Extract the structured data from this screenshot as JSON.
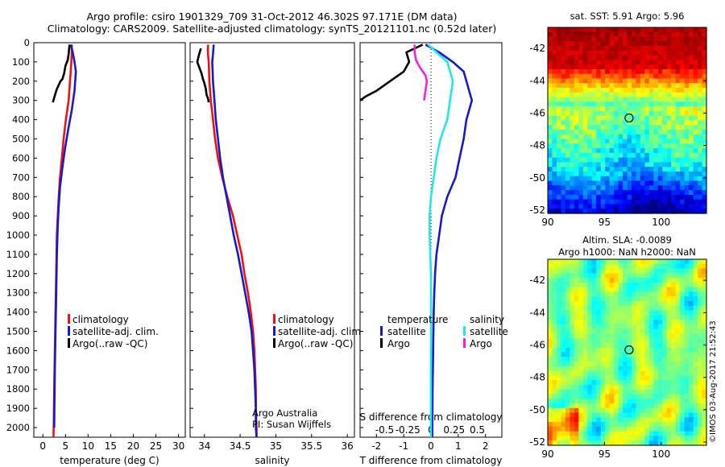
{
  "title": {
    "line1": "Argo profile: csiro 1901329_709 31-Oct-2012 46.302S 97.171E (DM data)",
    "line2": "Climatology: CARS2009. Satellite-adjusted climatology: synTS_20121101.nc (0.52d later)"
  },
  "timestamp": "©IMOS 03-Aug-2017 21:52:43",
  "colors": {
    "red": "#ee1111",
    "blue": "#1818cc",
    "black": "#000000",
    "cyan": "#22e6e6",
    "magenta": "#ee22dd"
  },
  "chart_data": [
    {
      "type": "line",
      "id": "temperature",
      "xlabel": "temperature (deg C)",
      "xlim": [
        -2,
        31.5
      ],
      "ylim": [
        0,
        2050
      ],
      "y_reversed": true,
      "xticks": [
        "0",
        "5",
        "10",
        "15",
        "20",
        "25",
        "30"
      ],
      "yticks": [
        "0",
        "100",
        "200",
        "300",
        "400",
        "500",
        "600",
        "700",
        "800",
        "900",
        "1000",
        "1100",
        "1200",
        "1300",
        "1400",
        "1500",
        "1600",
        "1700",
        "1800",
        "1900",
        "2000"
      ],
      "legend": [
        "climatology",
        "satellite-adj. clim.",
        "Argo(..raw -QC)"
      ],
      "series": [
        {
          "name": "climatology",
          "color": "red",
          "points": [
            [
              6.4,
              10
            ],
            [
              6.4,
              50
            ],
            [
              6.3,
              100
            ],
            [
              6.0,
              200
            ],
            [
              5.7,
              300
            ],
            [
              5.1,
              400
            ],
            [
              4.6,
              500
            ],
            [
              4.2,
              600
            ],
            [
              3.8,
              700
            ],
            [
              3.5,
              800
            ],
            [
              3.3,
              900
            ],
            [
              3.1,
              1000
            ],
            [
              2.95,
              1200
            ],
            [
              2.8,
              1400
            ],
            [
              2.65,
              1600
            ],
            [
              2.5,
              1800
            ],
            [
              2.4,
              2000
            ],
            [
              2.35,
              2050
            ]
          ]
        },
        {
          "name": "satellite-adj. clim.",
          "color": "blue",
          "points": [
            [
              6.2,
              10
            ],
            [
              6.6,
              50
            ],
            [
              7.0,
              100
            ],
            [
              7.3,
              150
            ],
            [
              7.0,
              250
            ],
            [
              6.4,
              350
            ],
            [
              5.6,
              450
            ],
            [
              4.9,
              550
            ],
            [
              4.3,
              650
            ],
            [
              3.8,
              750
            ],
            [
              3.5,
              850
            ],
            [
              3.3,
              950
            ],
            [
              3.1,
              1100
            ],
            [
              2.95,
              1300
            ],
            [
              2.8,
              1500
            ],
            [
              2.65,
              1700
            ],
            [
              2.55,
              1900
            ],
            [
              2.5,
              2000
            ]
          ]
        },
        {
          "name": "Argo(..raw -QC)",
          "color": "black",
          "points": [
            [
              5.9,
              10
            ],
            [
              5.7,
              60
            ],
            [
              5.5,
              90
            ],
            [
              5.0,
              120
            ],
            [
              4.7,
              160
            ],
            [
              4.3,
              190
            ],
            [
              3.9,
              200
            ],
            [
              3.5,
              220
            ],
            [
              3.1,
              240
            ],
            [
              2.7,
              270
            ],
            [
              2.4,
              295
            ],
            [
              2.2,
              310
            ]
          ]
        }
      ]
    },
    {
      "type": "line",
      "id": "salinity",
      "xlabel": "salinity",
      "xlim": [
        33.8,
        36.1
      ],
      "ylim": [
        0,
        2050
      ],
      "y_reversed": true,
      "xticks": [
        "34",
        "34.5",
        "35",
        "35.5",
        "36"
      ],
      "legend": [
        "climatology",
        "satellite-adj. clim.",
        "Argo(..raw -QC)"
      ],
      "annotation": [
        "Argo Australia",
        "PI: Susan Wijffels"
      ],
      "series": [
        {
          "name": "climatology",
          "color": "red",
          "points": [
            [
              34.05,
              10
            ],
            [
              34.05,
              60
            ],
            [
              34.06,
              100
            ],
            [
              34.07,
              200
            ],
            [
              34.09,
              300
            ],
            [
              34.12,
              400
            ],
            [
              34.15,
              500
            ],
            [
              34.19,
              600
            ],
            [
              34.25,
              700
            ],
            [
              34.32,
              800
            ],
            [
              34.4,
              900
            ],
            [
              34.46,
              1000
            ],
            [
              34.52,
              1100
            ],
            [
              34.56,
              1200
            ],
            [
              34.61,
              1300
            ],
            [
              34.65,
              1400
            ],
            [
              34.68,
              1500
            ],
            [
              34.7,
              1600
            ],
            [
              34.71,
              1700
            ],
            [
              34.72,
              1800
            ],
            [
              34.72,
              1900
            ],
            [
              34.73,
              2000
            ],
            [
              34.73,
              2050
            ]
          ]
        },
        {
          "name": "satellite-adj. clim.",
          "color": "blue",
          "points": [
            [
              34.13,
              10
            ],
            [
              34.12,
              60
            ],
            [
              34.11,
              100
            ],
            [
              34.12,
              200
            ],
            [
              34.14,
              300
            ],
            [
              34.16,
              400
            ],
            [
              34.19,
              500
            ],
            [
              34.22,
              600
            ],
            [
              34.26,
              700
            ],
            [
              34.31,
              800
            ],
            [
              34.36,
              900
            ],
            [
              34.41,
              1000
            ],
            [
              34.47,
              1100
            ],
            [
              34.52,
              1200
            ],
            [
              34.57,
              1300
            ],
            [
              34.62,
              1400
            ],
            [
              34.66,
              1500
            ],
            [
              34.68,
              1600
            ],
            [
              34.7,
              1700
            ],
            [
              34.71,
              1800
            ],
            [
              34.72,
              1900
            ],
            [
              34.72,
              2000
            ],
            [
              34.73,
              2050
            ]
          ]
        },
        {
          "name": "Argo(..raw -QC)",
          "color": "black",
          "points": [
            [
              33.95,
              30
            ],
            [
              33.92,
              70
            ],
            [
              33.9,
              100
            ],
            [
              33.93,
              130
            ],
            [
              33.96,
              160
            ],
            [
              33.98,
              190
            ],
            [
              34.0,
              210
            ],
            [
              34.02,
              240
            ],
            [
              34.03,
              270
            ],
            [
              34.05,
              290
            ],
            [
              34.06,
              310
            ]
          ]
        }
      ]
    },
    {
      "type": "line",
      "id": "difference",
      "xlabel": "T difference from climatology",
      "xlabel_top": "S difference from climatology",
      "xlim": [
        -2.6,
        2.6
      ],
      "ylim": [
        0,
        2050
      ],
      "y_reversed": true,
      "xticks": [
        "-2",
        "-1",
        "0",
        "1",
        "2"
      ],
      "xticks_top": [
        "-0.5",
        "-0.25",
        "0",
        "0.25",
        "0.5"
      ],
      "legend_headers": [
        "temperature",
        "salinity"
      ],
      "legend": {
        "temperature": [
          "satellite",
          "Argo"
        ],
        "salinity": [
          "satellite",
          "Argo"
        ]
      },
      "series": [
        {
          "name": "temperature satellite",
          "color": "blue",
          "points": [
            [
              -0.2,
              10
            ],
            [
              0.3,
              50
            ],
            [
              0.8,
              100
            ],
            [
              1.2,
              150
            ],
            [
              1.3,
              200
            ],
            [
              1.5,
              300
            ],
            [
              1.3,
              400
            ],
            [
              1.2,
              500
            ],
            [
              1.05,
              600
            ],
            [
              0.9,
              700
            ],
            [
              0.6,
              800
            ],
            [
              0.4,
              900
            ],
            [
              0.3,
              1000
            ],
            [
              0.2,
              1100
            ],
            [
              0.15,
              1200
            ],
            [
              0.12,
              1300
            ],
            [
              0.1,
              1400
            ],
            [
              0.08,
              1600
            ],
            [
              0.06,
              1800
            ],
            [
              0.05,
              2000
            ],
            [
              0.05,
              2050
            ]
          ]
        },
        {
          "name": "temperature Argo",
          "color": "black",
          "points": [
            [
              -0.3,
              10
            ],
            [
              -0.9,
              50
            ],
            [
              -0.8,
              100
            ],
            [
              -1.0,
              150
            ],
            [
              -1.5,
              200
            ],
            [
              -2.0,
              250
            ],
            [
              -2.4,
              280
            ],
            [
              -2.6,
              300
            ]
          ]
        },
        {
          "name": "salinity satellite",
          "color": "cyan",
          "points": [
            [
              -0.1,
              10
            ],
            [
              0.2,
              50
            ],
            [
              0.6,
              100
            ],
            [
              0.8,
              200
            ],
            [
              0.7,
              300
            ],
            [
              0.6,
              400
            ],
            [
              0.35,
              500
            ],
            [
              0.2,
              600
            ],
            [
              0.1,
              700
            ],
            [
              0.0,
              800
            ],
            [
              -0.05,
              900
            ],
            [
              -0.05,
              1000
            ],
            [
              0.0,
              1200
            ],
            [
              0.0,
              1400
            ],
            [
              0.0,
              1600
            ],
            [
              0.0,
              1800
            ],
            [
              0.0,
              2000
            ],
            [
              0.0,
              2050
            ]
          ]
        },
        {
          "name": "salinity Argo",
          "color": "magenta",
          "points": [
            [
              -0.6,
              10
            ],
            [
              -0.6,
              50
            ],
            [
              -0.55,
              90
            ],
            [
              -0.4,
              130
            ],
            [
              -0.2,
              170
            ],
            [
              -0.15,
              200
            ],
            [
              -0.2,
              250
            ],
            [
              -0.25,
              300
            ]
          ]
        }
      ]
    },
    {
      "type": "heatmap",
      "id": "sst-map",
      "title": "sat. SST: 5.91  Argo: 5.96",
      "xlim": [
        90,
        104
      ],
      "ylim": [
        -52.2,
        -40.7
      ],
      "xticks": [
        "90",
        "95",
        "100"
      ],
      "yticks": [
        "-42",
        "-44",
        "-46",
        "-48",
        "-50",
        "-52"
      ],
      "float_position": [
        97.171,
        -46.302
      ],
      "colorscale": "jet"
    },
    {
      "type": "heatmap",
      "id": "sla-map",
      "title": "Altim. SLA: -0.0089",
      "subtitle": "Argo h1000: NaN h2000: NaN",
      "xlim": [
        90,
        104
      ],
      "ylim": [
        -52.2,
        -40.7
      ],
      "xticks": [
        "90",
        "95",
        "100"
      ],
      "yticks": [
        "-42",
        "-44",
        "-46",
        "-48",
        "-50",
        "-52"
      ],
      "float_position": [
        97.171,
        -46.302
      ],
      "colorscale": "jet"
    }
  ]
}
